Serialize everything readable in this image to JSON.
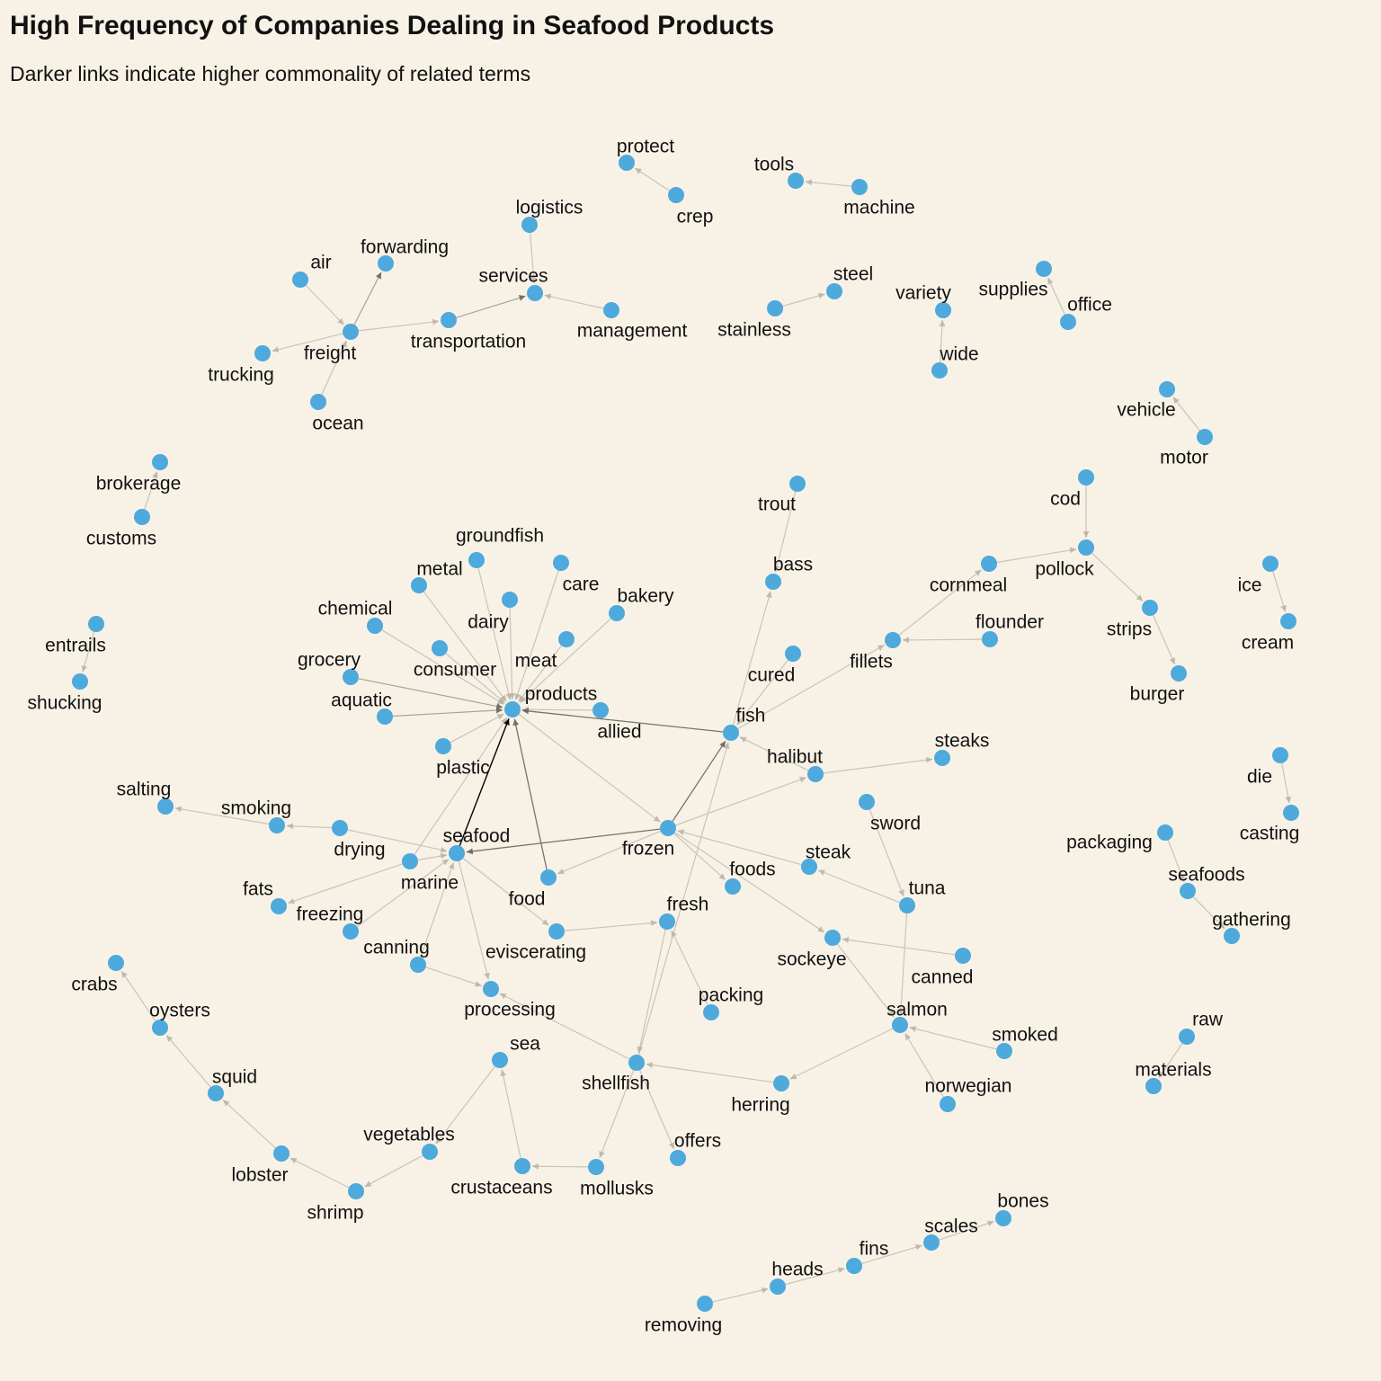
{
  "title": "High Frequency of Companies Dealing in Seafood Products",
  "subtitle": "Darker links indicate higher commonality of related terms",
  "colors": {
    "background": "#f8f2e6",
    "node": "#4ea9dc",
    "link_light": "#c7c2b6",
    "link_dark": "#000000"
  },
  "nodes": [
    {
      "id": "protect",
      "label": "protect"
    },
    {
      "id": "crep",
      "label": "crep"
    },
    {
      "id": "tools",
      "label": "tools"
    },
    {
      "id": "machine",
      "label": "machine"
    },
    {
      "id": "logistics",
      "label": "logistics"
    },
    {
      "id": "forwarding",
      "label": "forwarding"
    },
    {
      "id": "air",
      "label": "air"
    },
    {
      "id": "services",
      "label": "services"
    },
    {
      "id": "management",
      "label": "management"
    },
    {
      "id": "transportation",
      "label": "transportation"
    },
    {
      "id": "freight",
      "label": "freight"
    },
    {
      "id": "trucking",
      "label": "trucking"
    },
    {
      "id": "ocean",
      "label": "ocean"
    },
    {
      "id": "steel",
      "label": "steel"
    },
    {
      "id": "stainless",
      "label": "stainless"
    },
    {
      "id": "variety",
      "label": "variety"
    },
    {
      "id": "wide",
      "label": "wide"
    },
    {
      "id": "supplies",
      "label": "supplies"
    },
    {
      "id": "office",
      "label": "office"
    },
    {
      "id": "vehicle",
      "label": "vehicle"
    },
    {
      "id": "motor",
      "label": "motor"
    },
    {
      "id": "brokerage",
      "label": "brokerage"
    },
    {
      "id": "customs",
      "label": "customs"
    },
    {
      "id": "cod",
      "label": "cod"
    },
    {
      "id": "pollock",
      "label": "pollock"
    },
    {
      "id": "cornmeal",
      "label": "cornmeal"
    },
    {
      "id": "strips",
      "label": "strips"
    },
    {
      "id": "burger",
      "label": "burger"
    },
    {
      "id": "ice",
      "label": "ice"
    },
    {
      "id": "cream",
      "label": "cream"
    },
    {
      "id": "trout",
      "label": "trout"
    },
    {
      "id": "bass",
      "label": "bass"
    },
    {
      "id": "groundfish",
      "label": "groundfish"
    },
    {
      "id": "metal",
      "label": "metal"
    },
    {
      "id": "care",
      "label": "care"
    },
    {
      "id": "bakery",
      "label": "bakery"
    },
    {
      "id": "chemical",
      "label": "chemical"
    },
    {
      "id": "dairy",
      "label": "dairy"
    },
    {
      "id": "flounder",
      "label": "flounder"
    },
    {
      "id": "fillets",
      "label": "fillets"
    },
    {
      "id": "cured",
      "label": "cured"
    },
    {
      "id": "entrails",
      "label": "entrails"
    },
    {
      "id": "shucking",
      "label": "shucking"
    },
    {
      "id": "meat",
      "label": "meat"
    },
    {
      "id": "consumer",
      "label": "consumer"
    },
    {
      "id": "grocery",
      "label": "grocery"
    },
    {
      "id": "aquatic",
      "label": "aquatic"
    },
    {
      "id": "products",
      "label": "products"
    },
    {
      "id": "allied",
      "label": "allied"
    },
    {
      "id": "fish",
      "label": "fish"
    },
    {
      "id": "plastic",
      "label": "plastic"
    },
    {
      "id": "steaks",
      "label": "steaks"
    },
    {
      "id": "halibut",
      "label": "halibut"
    },
    {
      "id": "die",
      "label": "die"
    },
    {
      "id": "salting",
      "label": "salting"
    },
    {
      "id": "smoking",
      "label": "smoking"
    },
    {
      "id": "sword",
      "label": "sword"
    },
    {
      "id": "casting",
      "label": "casting"
    },
    {
      "id": "drying",
      "label": "drying"
    },
    {
      "id": "seafood",
      "label": "seafood"
    },
    {
      "id": "frozen",
      "label": "frozen"
    },
    {
      "id": "packaging",
      "label": "packaging"
    },
    {
      "id": "steak",
      "label": "steak"
    },
    {
      "id": "marine",
      "label": "marine"
    },
    {
      "id": "fats",
      "label": "fats"
    },
    {
      "id": "foods",
      "label": "foods"
    },
    {
      "id": "tuna",
      "label": "tuna"
    },
    {
      "id": "seafoods",
      "label": "seafoods"
    },
    {
      "id": "food",
      "label": "food"
    },
    {
      "id": "freezing",
      "label": "freezing"
    },
    {
      "id": "fresh",
      "label": "fresh"
    },
    {
      "id": "gathering",
      "label": "gathering"
    },
    {
      "id": "canning",
      "label": "canning"
    },
    {
      "id": "eviscerating",
      "label": "eviscerating"
    },
    {
      "id": "sockeye",
      "label": "sockeye"
    },
    {
      "id": "canned",
      "label": "canned"
    },
    {
      "id": "crabs",
      "label": "crabs"
    },
    {
      "id": "packing",
      "label": "packing"
    },
    {
      "id": "processing",
      "label": "processing"
    },
    {
      "id": "oysters",
      "label": "oysters"
    },
    {
      "id": "salmon",
      "label": "salmon"
    },
    {
      "id": "smoked",
      "label": "smoked"
    },
    {
      "id": "raw",
      "label": "raw"
    },
    {
      "id": "sea",
      "label": "sea"
    },
    {
      "id": "squid",
      "label": "squid"
    },
    {
      "id": "materials",
      "label": "materials"
    },
    {
      "id": "shellfish",
      "label": "shellfish"
    },
    {
      "id": "herring",
      "label": "herring"
    },
    {
      "id": "norwegian",
      "label": "norwegian"
    },
    {
      "id": "vegetables",
      "label": "vegetables"
    },
    {
      "id": "offers",
      "label": "offers"
    },
    {
      "id": "lobster",
      "label": "lobster"
    },
    {
      "id": "crustaceans",
      "label": "crustaceans"
    },
    {
      "id": "mollusks",
      "label": "mollusks"
    },
    {
      "id": "shrimp",
      "label": "shrimp"
    },
    {
      "id": "bones",
      "label": "bones"
    },
    {
      "id": "scales",
      "label": "scales"
    },
    {
      "id": "fins",
      "label": "fins"
    },
    {
      "id": "heads",
      "label": "heads"
    },
    {
      "id": "removing",
      "label": "removing"
    }
  ],
  "links": [
    {
      "source": "crep",
      "target": "protect",
      "weight": 0.2
    },
    {
      "source": "machine",
      "target": "tools",
      "weight": 0.2
    },
    {
      "source": "logistics",
      "target": "services",
      "weight": 0.2
    },
    {
      "source": "management",
      "target": "services",
      "weight": 0.2
    },
    {
      "source": "transportation",
      "target": "services",
      "weight": 0.35
    },
    {
      "source": "air",
      "target": "freight",
      "weight": 0.2
    },
    {
      "source": "freight",
      "target": "forwarding",
      "weight": 0.35
    },
    {
      "source": "freight",
      "target": "trucking",
      "weight": 0.2
    },
    {
      "source": "freight",
      "target": "transportation",
      "weight": 0.2
    },
    {
      "source": "ocean",
      "target": "freight",
      "weight": 0.2
    },
    {
      "source": "stainless",
      "target": "steel",
      "weight": 0.2
    },
    {
      "source": "wide",
      "target": "variety",
      "weight": 0.2
    },
    {
      "source": "office",
      "target": "supplies",
      "weight": 0.2
    },
    {
      "source": "motor",
      "target": "vehicle",
      "weight": 0.2
    },
    {
      "source": "customs",
      "target": "brokerage",
      "weight": 0.2
    },
    {
      "source": "cod",
      "target": "pollock",
      "weight": 0.2
    },
    {
      "source": "cornmeal",
      "target": "pollock",
      "weight": 0.2
    },
    {
      "source": "pollock",
      "target": "strips",
      "weight": 0.2
    },
    {
      "source": "strips",
      "target": "burger",
      "weight": 0.2
    },
    {
      "source": "fillets",
      "target": "cornmeal",
      "weight": 0.2
    },
    {
      "source": "ice",
      "target": "cream",
      "weight": 0.2
    },
    {
      "source": "trout",
      "target": "bass",
      "weight": 0.2
    },
    {
      "source": "fish",
      "target": "bass",
      "weight": 0.2
    },
    {
      "source": "groundfish",
      "target": "products",
      "weight": 0.2
    },
    {
      "source": "metal",
      "target": "products",
      "weight": 0.2
    },
    {
      "source": "care",
      "target": "products",
      "weight": 0.2
    },
    {
      "source": "bakery",
      "target": "products",
      "weight": 0.2
    },
    {
      "source": "chemical",
      "target": "products",
      "weight": 0.2
    },
    {
      "source": "dairy",
      "target": "products",
      "weight": 0.2
    },
    {
      "source": "meat",
      "target": "products",
      "weight": 0.2
    },
    {
      "source": "consumer",
      "target": "products",
      "weight": 0.2
    },
    {
      "source": "grocery",
      "target": "products",
      "weight": 0.3
    },
    {
      "source": "aquatic",
      "target": "products",
      "weight": 0.35
    },
    {
      "source": "allied",
      "target": "products",
      "weight": 0.25
    },
    {
      "source": "plastic",
      "target": "products",
      "weight": 0.2
    },
    {
      "source": "marine",
      "target": "products",
      "weight": 0.2
    },
    {
      "source": "fish",
      "target": "products",
      "weight": 0.6
    },
    {
      "source": "seafood",
      "target": "products",
      "weight": 1.0
    },
    {
      "source": "food",
      "target": "products",
      "weight": 0.7
    },
    {
      "source": "products",
      "target": "frozen",
      "weight": 0.25
    },
    {
      "source": "flounder",
      "target": "fillets",
      "weight": 0.2
    },
    {
      "source": "fish",
      "target": "fillets",
      "weight": 0.2
    },
    {
      "source": "cured",
      "target": "fish",
      "weight": 0.2
    },
    {
      "source": "entrails",
      "target": "shucking",
      "weight": 0.2
    },
    {
      "source": "halibut",
      "target": "fish",
      "weight": 0.2
    },
    {
      "source": "halibut",
      "target": "steaks",
      "weight": 0.2
    },
    {
      "source": "frozen",
      "target": "halibut",
      "weight": 0.2
    },
    {
      "source": "frozen",
      "target": "fish",
      "weight": 0.45
    },
    {
      "source": "shellfish",
      "target": "fish",
      "weight": 0.25
    },
    {
      "source": "die",
      "target": "casting",
      "weight": 0.2
    },
    {
      "source": "smoking",
      "target": "salting",
      "weight": 0.2
    },
    {
      "source": "drying",
      "target": "smoking",
      "weight": 0.2
    },
    {
      "source": "drying",
      "target": "seafood",
      "weight": 0.2
    },
    {
      "source": "sword",
      "target": "tuna",
      "weight": 0.2
    },
    {
      "source": "frozen",
      "target": "seafood",
      "weight": 0.45
    },
    {
      "source": "frozen",
      "target": "food",
      "weight": 0.2
    },
    {
      "source": "frozen",
      "target": "foods",
      "weight": 0.2
    },
    {
      "source": "frozen",
      "target": "sockeye",
      "weight": 0.2
    },
    {
      "source": "steak",
      "target": "frozen",
      "weight": 0.2
    },
    {
      "source": "packaging",
      "target": "seafoods",
      "weight": 0.2
    },
    {
      "source": "seafoods",
      "target": "gathering",
      "weight": 0.2
    },
    {
      "source": "tuna",
      "target": "steak",
      "weight": 0.2
    },
    {
      "source": "tuna",
      "target": "salmon",
      "weight": 0.2
    },
    {
      "source": "marine",
      "target": "fats",
      "weight": 0.2
    },
    {
      "source": "marine",
      "target": "seafood",
      "weight": 0.2
    },
    {
      "source": "seafood",
      "target": "eviscerating",
      "weight": 0.2
    },
    {
      "source": "freezing",
      "target": "seafood",
      "weight": 0.2
    },
    {
      "source": "canning",
      "target": "seafood",
      "weight": 0.2
    },
    {
      "source": "canning",
      "target": "processing",
      "weight": 0.2
    },
    {
      "source": "seafood",
      "target": "processing",
      "weight": 0.2
    },
    {
      "source": "eviscerating",
      "target": "fresh",
      "weight": 0.2
    },
    {
      "source": "packing",
      "target": "fresh",
      "weight": 0.2
    },
    {
      "source": "fresh",
      "target": "shellfish",
      "weight": 0.2
    },
    {
      "source": "canned",
      "target": "sockeye",
      "weight": 0.2
    },
    {
      "source": "sockeye",
      "target": "salmon",
      "weight": 0.2
    },
    {
      "source": "oysters",
      "target": "crabs",
      "weight": 0.2
    },
    {
      "source": "squid",
      "target": "oysters",
      "weight": 0.2
    },
    {
      "source": "lobster",
      "target": "squid",
      "weight": 0.2
    },
    {
      "source": "shrimp",
      "target": "lobster",
      "weight": 0.2
    },
    {
      "source": "vegetables",
      "target": "shrimp",
      "weight": 0.2
    },
    {
      "source": "sea",
      "target": "vegetables",
      "weight": 0.2
    },
    {
      "source": "crustaceans",
      "target": "sea",
      "weight": 0.2
    },
    {
      "source": "mollusks",
      "target": "crustaceans",
      "weight": 0.2
    },
    {
      "source": "shellfish",
      "target": "mollusks",
      "weight": 0.2
    },
    {
      "source": "shellfish",
      "target": "offers",
      "weight": 0.2
    },
    {
      "source": "shellfish",
      "target": "processing",
      "weight": 0.2
    },
    {
      "source": "herring",
      "target": "shellfish",
      "weight": 0.2
    },
    {
      "source": "salmon",
      "target": "herring",
      "weight": 0.2
    },
    {
      "source": "smoked",
      "target": "salmon",
      "weight": 0.2
    },
    {
      "source": "norwegian",
      "target": "salmon",
      "weight": 0.2
    },
    {
      "source": "raw",
      "target": "materials",
      "weight": 0.2
    },
    {
      "source": "removing",
      "target": "heads",
      "weight": 0.2
    },
    {
      "source": "heads",
      "target": "fins",
      "weight": 0.2
    },
    {
      "source": "fins",
      "target": "scales",
      "weight": 0.2
    },
    {
      "source": "scales",
      "target": "bones",
      "weight": 0.2
    }
  ]
}
